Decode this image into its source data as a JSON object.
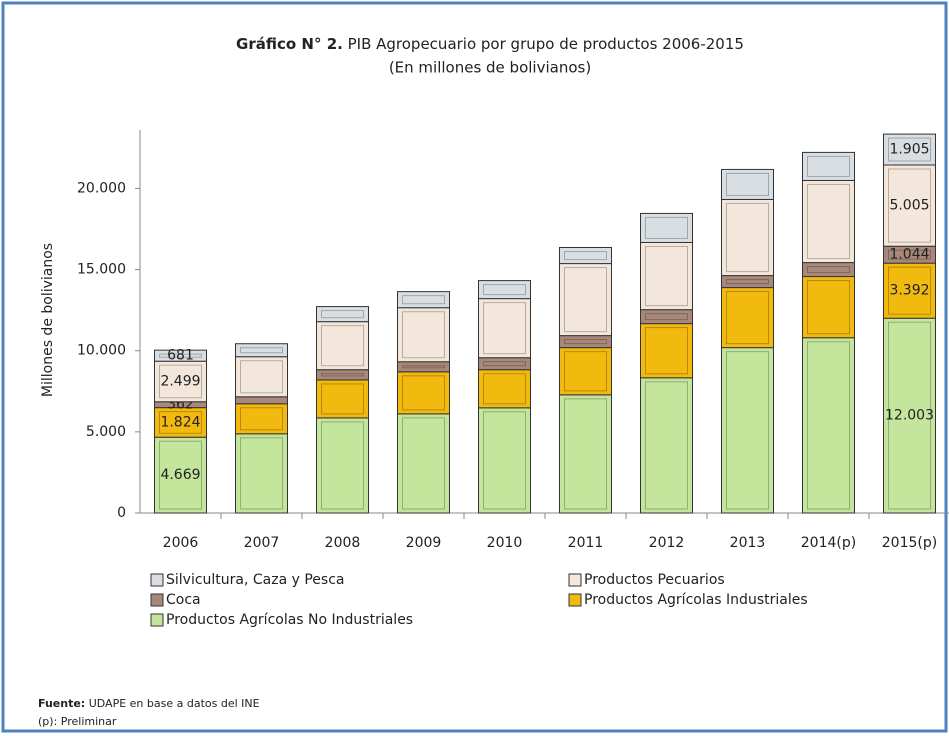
{
  "chart_data": {
    "type": "stacked_bar",
    "title_prefix": "Gráfico N° 2.",
    "title": "PIB Agropecuario por grupo de productos 2006-2015",
    "subtitle": "(En millones de bolivianos)",
    "y_label": "Millones de bolivianos",
    "categories": [
      "2006",
      "2007",
      "2008",
      "2009",
      "2010",
      "2011",
      "2012",
      "2013",
      "2014(p)",
      "2015(p)"
    ],
    "series": [
      {
        "name": "Productos Agrícolas No Industriales",
        "color": "#c4e59c",
        "values": [
          4669,
          4880,
          5860,
          6110,
          6480,
          7280,
          8330,
          10190,
          10800,
          12003
        ],
        "value_labels": [
          "4.669",
          null,
          null,
          null,
          null,
          null,
          null,
          null,
          null,
          "12.003"
        ]
      },
      {
        "name": "Productos Agrícolas Industriales",
        "color": "#f2b90f",
        "values": [
          1824,
          1850,
          2340,
          2590,
          2350,
          2910,
          3340,
          3700,
          3770,
          3392
        ],
        "value_labels": [
          "1.824",
          null,
          null,
          null,
          null,
          null,
          null,
          null,
          null,
          "3.392"
        ]
      },
      {
        "name": "Coca",
        "color": "#a8887a",
        "values": [
          362,
          430,
          630,
          620,
          740,
          740,
          860,
          740,
          860,
          1044
        ],
        "value_labels": [
          "362",
          null,
          null,
          null,
          null,
          null,
          null,
          null,
          null,
          "1.044"
        ]
      },
      {
        "name": "Productos Pecuarios",
        "color": "#f3e6da",
        "values": [
          2499,
          2470,
          2960,
          3330,
          3640,
          4440,
          4140,
          4690,
          5060,
          5005
        ],
        "value_labels": [
          "2.499",
          null,
          null,
          null,
          null,
          null,
          null,
          null,
          null,
          "5.005"
        ]
      },
      {
        "name": "Silvicultura, Caza y Pesca",
        "color": "#d9dee3",
        "values": [
          681,
          800,
          930,
          990,
          1110,
          990,
          1790,
          1850,
          1730,
          1905
        ],
        "value_labels": [
          "681",
          null,
          null,
          null,
          null,
          null,
          null,
          null,
          null,
          "1.905"
        ]
      }
    ],
    "ylim": [
      0,
      23600
    ],
    "yticks": [
      0,
      {
        "value": 5000,
        "label": "5.000"
      },
      {
        "value": 10000,
        "label": "10.000"
      },
      {
        "value": 15000,
        "label": "15.000"
      },
      {
        "value": 20000,
        "label": "20.000"
      }
    ],
    "source_label": "Fuente:",
    "source": "UDAPE en base a datos del INE",
    "note": "(p): Preliminar"
  }
}
